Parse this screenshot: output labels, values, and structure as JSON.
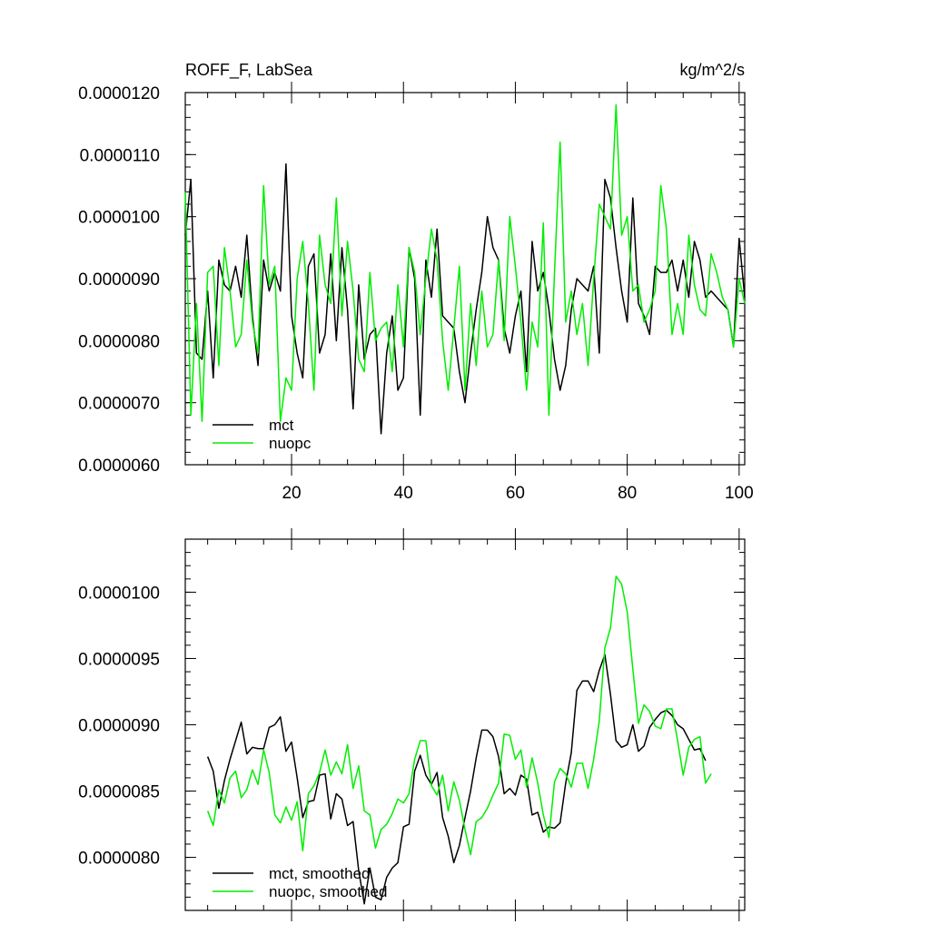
{
  "chart_data": [
    {
      "type": "line",
      "title": "ROFF_F, LabSea",
      "units": "kg/m^2/s",
      "xlim": [
        1,
        101
      ],
      "ylim": [
        6e-06,
        1.2e-05
      ],
      "xticks": [
        20,
        40,
        60,
        80,
        100
      ],
      "xtick_labels": [
        "20",
        "40",
        "60",
        "80",
        "100"
      ],
      "yticks": [
        6e-06,
        7e-06,
        8e-06,
        9e-06,
        1e-05,
        1.1e-05,
        1.2e-05
      ],
      "ytick_labels": [
        "0.0000060",
        "0.0000070",
        "0.0000080",
        "0.0000090",
        "0.0000100",
        "0.0000110",
        "0.0000120"
      ],
      "legend_position": "bottom-left",
      "series": [
        {
          "name": "mct",
          "color": "#000000",
          "x_start": 1,
          "values": [
            9.7,
            10.6,
            7.8,
            7.7,
            8.8,
            7.4,
            9.3,
            8.9,
            8.8,
            9.2,
            8.7,
            9.7,
            8.4,
            7.6,
            9.3,
            8.8,
            9.1,
            8.8,
            10.85,
            8.4,
            7.8,
            7.4,
            9.2,
            9.4,
            7.8,
            8.1,
            9.4,
            8.0,
            9.5,
            8.5,
            6.9,
            8.9,
            7.7,
            8.1,
            8.2,
            6.5,
            7.8,
            8.4,
            7.2,
            7.4,
            9.5,
            9.0,
            6.8,
            9.3,
            8.7,
            9.8,
            8.4,
            8.3,
            8.2,
            7.5,
            7.0,
            7.8,
            8.5,
            9.1,
            10.0,
            9.5,
            9.3,
            8.2,
            7.8,
            8.4,
            8.8,
            7.5,
            9.6,
            8.8,
            9.1,
            8.5,
            7.7,
            7.2,
            7.6,
            8.5,
            9.0,
            8.9,
            8.8,
            9.2,
            7.8,
            10.6,
            10.3,
            9.5,
            8.8,
            8.3,
            10.3,
            8.6,
            8.4,
            8.1,
            9.2,
            9.1,
            9.1,
            9.3,
            8.8,
            9.3,
            8.7,
            9.6,
            9.3,
            8.7,
            8.8,
            8.7,
            8.6,
            8.5,
            7.9,
            9.65,
            8.7
          ]
        },
        {
          "name": "nuopc",
          "color": "#00ee00",
          "x_start": 1,
          "values": [
            10.4,
            6.8,
            8.6,
            6.7,
            9.1,
            9.2,
            7.6,
            9.5,
            8.8,
            7.9,
            8.1,
            9.3,
            8.3,
            7.8,
            10.5,
            8.9,
            9.2,
            6.7,
            7.4,
            7.2,
            9.0,
            9.6,
            8.6,
            7.2,
            9.7,
            8.9,
            8.6,
            10.3,
            8.4,
            9.6,
            8.8,
            7.7,
            7.5,
            9.1,
            8.0,
            8.2,
            8.3,
            7.5,
            8.9,
            7.9,
            9.5,
            9.1,
            8.1,
            9.0,
            9.8,
            9.3,
            8.0,
            7.2,
            8.2,
            9.2,
            7.2,
            8.6,
            7.6,
            8.8,
            7.9,
            8.1,
            9.3,
            8.0,
            10.0,
            9.2,
            8.3,
            7.2,
            8.3,
            7.9,
            9.9,
            6.8,
            9.1,
            11.2,
            8.3,
            8.8,
            8.1,
            8.6,
            7.6,
            9.0,
            10.2,
            10.0,
            9.8,
            11.8,
            9.7,
            10.0,
            8.8,
            8.9,
            8.3,
            8.5,
            8.8,
            10.5,
            9.8,
            8.1,
            8.6,
            8.1,
            9.7,
            8.9,
            8.5,
            8.4,
            9.4,
            9.1,
            8.7,
            8.5,
            7.9,
            9.0,
            8.6
          ]
        }
      ],
      "value_scale": 1e-06
    },
    {
      "type": "line",
      "title": "",
      "xlim": [
        1,
        101
      ],
      "ylim": [
        7.6e-06,
        1.04e-05
      ],
      "xticks": [
        20,
        40,
        60,
        80,
        100
      ],
      "xtick_labels": [
        "",
        "",
        "",
        "",
        ""
      ],
      "yticks": [
        8e-06,
        8.5e-06,
        9e-06,
        9.5e-06,
        1e-05
      ],
      "ytick_labels": [
        "0.0000080",
        "0.0000085",
        "0.0000090",
        "0.0000095",
        "0.0000100"
      ],
      "legend_position": "bottom-left",
      "series": [
        {
          "name": "mct, smoothed",
          "color": "#000000",
          "x_start": 5,
          "values": [
            8.76,
            8.65,
            8.37,
            8.58,
            8.74,
            8.88,
            9.02,
            8.78,
            8.83,
            8.82,
            8.82,
            8.98,
            9.0,
            9.06,
            8.8,
            8.87,
            8.6,
            8.3,
            8.42,
            8.43,
            8.62,
            8.63,
            8.29,
            8.48,
            8.44,
            8.24,
            8.27,
            7.9,
            7.65,
            7.92,
            7.7,
            7.68,
            7.85,
            7.92,
            7.96,
            8.23,
            8.25,
            8.65,
            8.77,
            8.62,
            8.55,
            8.64,
            8.3,
            8.16,
            7.96,
            8.09,
            8.3,
            8.5,
            8.75,
            8.96,
            8.96,
            8.91,
            8.76,
            8.48,
            8.52,
            8.47,
            8.62,
            8.59,
            8.32,
            8.34,
            8.19,
            8.23,
            8.22,
            8.26,
            8.56,
            8.79,
            9.26,
            9.33,
            9.33,
            9.25,
            9.41,
            9.53,
            9.23,
            8.88,
            8.83,
            8.85,
            9.0,
            8.8,
            8.84,
            8.98,
            9.04,
            9.09,
            9.11,
            9.07,
            9.0,
            8.97,
            8.89,
            8.81,
            8.82,
            8.73
          ]
        },
        {
          "name": "nuopc, smoothed",
          "color": "#00ee00",
          "x_start": 5,
          "values": [
            8.35,
            8.24,
            8.51,
            8.41,
            8.6,
            8.65,
            8.45,
            8.51,
            8.66,
            8.55,
            8.81,
            8.64,
            8.32,
            8.26,
            8.38,
            8.28,
            8.42,
            8.05,
            8.48,
            8.54,
            8.64,
            8.81,
            8.62,
            8.72,
            8.63,
            8.85,
            8.52,
            8.69,
            8.35,
            8.32,
            8.07,
            8.21,
            8.25,
            8.33,
            8.44,
            8.41,
            8.48,
            8.74,
            8.88,
            8.88,
            8.54,
            8.47,
            8.62,
            8.35,
            8.57,
            8.43,
            8.21,
            8.02,
            8.27,
            8.3,
            8.37,
            8.47,
            8.56,
            8.93,
            8.92,
            8.74,
            8.81,
            8.53,
            8.75,
            8.56,
            8.32,
            8.15,
            8.57,
            8.67,
            8.63,
            8.53,
            8.71,
            8.71,
            8.52,
            8.74,
            9.03,
            9.58,
            9.73,
            10.12,
            10.06,
            9.85,
            9.42,
            9.01,
            9.15,
            9.1,
            8.99,
            8.97,
            9.12,
            9.12,
            8.88,
            8.62,
            8.83,
            8.89,
            8.91,
            8.56,
            8.63
          ]
        }
      ],
      "value_scale": 1e-06
    }
  ]
}
